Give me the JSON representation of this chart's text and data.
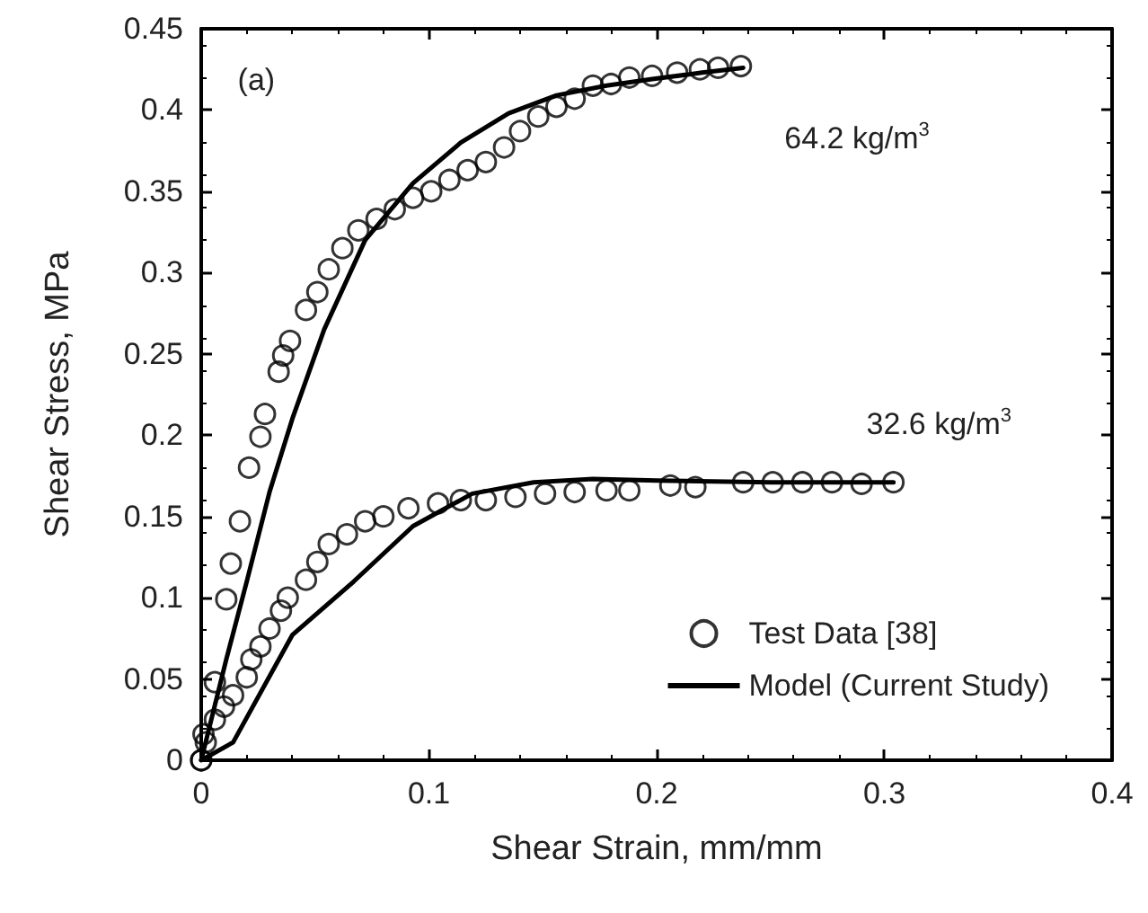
{
  "chart_data": {
    "type": "scatter",
    "xlabel": "Shear Strain, mm/mm",
    "ylabel": "Shear Stress, MPa",
    "xlim": [
      0,
      0.4
    ],
    "xticks": [
      0,
      0.1,
      0.2,
      0.3,
      0.4
    ],
    "ylim": [
      0,
      0.45
    ],
    "yticks": [
      0,
      0.05,
      0.1,
      0.15,
      0.2,
      0.25,
      0.3,
      0.35,
      0.4,
      0.45
    ],
    "grid": false,
    "legend": "bottom right",
    "annotations": [
      "(a)",
      "64.2 kg/m$^{3}$",
      "32.6 kg/m$^{3}$"
    ],
    "series": [
      {
        "name": "Test Data [38]",
        "marker": "circle",
        "color": "#000000",
        "x": [
          0,
          0.001,
          0.006,
          0.011,
          0.013,
          0.017,
          0.021,
          0.026,
          0.028,
          0.034,
          0.036,
          0.039,
          0.046,
          0.051,
          0.056,
          0.062,
          0.069,
          0.077,
          0.085,
          0.093,
          0.101,
          0.109,
          0.117,
          0.125,
          0.133,
          0.14,
          0.148,
          0.156,
          0.164,
          0.172,
          0.18,
          0.188,
          0.198,
          0.209,
          0.219,
          0.227,
          0.237
        ],
        "values": [
          0,
          0.016,
          0.048,
          0.099,
          0.121,
          0.147,
          0.18,
          0.199,
          0.213,
          0.239,
          0.249,
          0.258,
          0.277,
          0.288,
          0.302,
          0.315,
          0.326,
          0.333,
          0.339,
          0.346,
          0.35,
          0.357,
          0.363,
          0.368,
          0.377,
          0.387,
          0.396,
          0.402,
          0.407,
          0.415,
          0.416,
          0.42,
          0.421,
          0.423,
          0.425,
          0.426,
          0.427
        ]
      },
      {
        "marker": "circle",
        "color": "#000000",
        "x": [
          0,
          0.002,
          0.006,
          0.01,
          0.014,
          0.02,
          0.022,
          0.026,
          0.03,
          0.035,
          0.038,
          0.046,
          0.051,
          0.056,
          0.064,
          0.072,
          0.08,
          0.091,
          0.104,
          0.114,
          0.125,
          0.138,
          0.151,
          0.164,
          0.178,
          0.188,
          0.206,
          0.217,
          0.238,
          0.251,
          0.264,
          0.277,
          0.29,
          0.304
        ],
        "values": [
          0,
          0.011,
          0.025,
          0.033,
          0.04,
          0.051,
          0.062,
          0.07,
          0.081,
          0.092,
          0.1,
          0.111,
          0.122,
          0.133,
          0.139,
          0.147,
          0.15,
          0.155,
          0.158,
          0.16,
          0.16,
          0.162,
          0.164,
          0.165,
          0.166,
          0.166,
          0.169,
          0.168,
          0.171,
          0.171,
          0.171,
          0.171,
          0.17,
          0.171
        ]
      },
      {
        "name": "Model (Current Study)",
        "type": "line",
        "marker": "none",
        "line_style": "solid",
        "color": "#000000",
        "x": [
          0,
          0.011,
          0.02,
          0.03,
          0.04,
          0.054,
          0.072,
          0.093,
          0.114,
          0.135,
          0.156,
          0.178,
          0.198,
          0.22,
          0.238
        ],
        "values": [
          0,
          0.062,
          0.11,
          0.165,
          0.21,
          0.265,
          0.32,
          0.355,
          0.38,
          0.398,
          0.409,
          0.415,
          0.419,
          0.423,
          0.426
        ]
      },
      {
        "type": "line",
        "marker": "none",
        "line_style": "solid",
        "color": "#000000",
        "x": [
          0,
          0.014,
          0.04,
          0.067,
          0.093,
          0.119,
          0.146,
          0.172,
          0.2,
          0.25,
          0.304
        ],
        "values": [
          0,
          0.011,
          0.077,
          0.11,
          0.144,
          0.164,
          0.171,
          0.173,
          0.172,
          0.171,
          0.171
        ]
      }
    ]
  }
}
